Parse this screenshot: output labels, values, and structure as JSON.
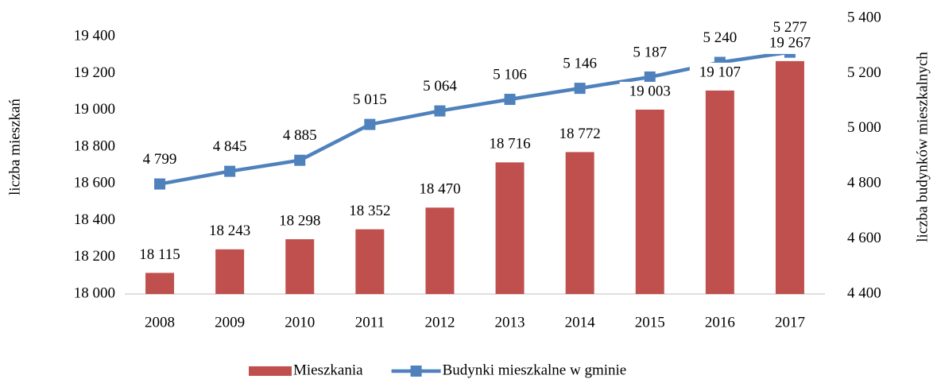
{
  "chart_data": {
    "type": "combo",
    "categories": [
      "2008",
      "2009",
      "2010",
      "2011",
      "2012",
      "2013",
      "2014",
      "2015",
      "2016",
      "2017"
    ],
    "ylabel": "liczba mieszkań",
    "y2label": "liczba budynków mieszkalnych",
    "ylim": [
      18000,
      19500
    ],
    "yticks": [
      {
        "value": 18000,
        "label": "18 000"
      },
      {
        "value": 18200,
        "label": "18 200"
      },
      {
        "value": 18400,
        "label": "18 400"
      },
      {
        "value": 18600,
        "label": "18 600"
      },
      {
        "value": 18800,
        "label": "18 800"
      },
      {
        "value": 19000,
        "label": "19 000"
      },
      {
        "value": 19200,
        "label": "19 200"
      },
      {
        "value": 19400,
        "label": "19 400"
      }
    ],
    "y2lim": [
      4400,
      5400
    ],
    "y2ticks": [
      {
        "value": 4400,
        "label": "4 400"
      },
      {
        "value": 4600,
        "label": "4 600"
      },
      {
        "value": 4800,
        "label": "4 800"
      },
      {
        "value": 5000,
        "label": "5 000"
      },
      {
        "value": 5200,
        "label": "5 200"
      },
      {
        "value": 5400,
        "label": "5 400"
      }
    ],
    "grid": false,
    "legend": "bottom",
    "series": [
      {
        "name": "Mieszkania",
        "type": "bar",
        "color": "#c0504d",
        "values": [
          18115,
          18243,
          18298,
          18352,
          18470,
          18716,
          18772,
          19003,
          19107,
          19267
        ],
        "value_labels": [
          "18 115",
          "18 243",
          "18 298",
          "18 352",
          "18 470",
          "18 716",
          "18 772",
          "19 003",
          "19 107",
          "19 267"
        ]
      },
      {
        "name": "Budynki mieszkalne w gminie",
        "type": "line",
        "axis": "y2",
        "color": "#4f81bd",
        "values": [
          4799,
          4845,
          4885,
          5015,
          5064,
          5106,
          5146,
          5187,
          5240,
          5277
        ],
        "value_labels": [
          "4 799",
          "4 845",
          "4 885",
          "5 015",
          "5 064",
          "5 106",
          "5 146",
          "5 187",
          "5 240",
          "5 277"
        ]
      }
    ]
  }
}
